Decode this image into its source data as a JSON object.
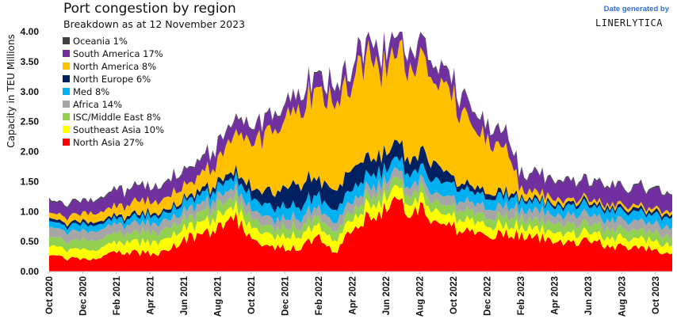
{
  "credit": {
    "line1": "Date generated by",
    "brand": "LINERLYTICA",
    "color": "#2f6fd6"
  },
  "chart_data": {
    "type": "area",
    "stacked": true,
    "title": "Port congestion by region",
    "subtitle": "Breakdown as at 12 November 2023",
    "ylabel": "Capacity in TEU Millions",
    "xlabel": "",
    "ylim": [
      0,
      4.0
    ],
    "yticks": [
      "0.00",
      "0.50",
      "1.00",
      "1.50",
      "2.00",
      "2.50",
      "3.00",
      "3.50",
      "4.00"
    ],
    "xticks": [
      "Oct 2020",
      "Dec 2020",
      "Feb 2021",
      "Apr 2021",
      "Jun 2021",
      "Aug 2021",
      "Oct 2021",
      "Dec 2021",
      "Feb 2022",
      "Apr 2022",
      "Jun 2022",
      "Aug 2022",
      "Oct 2022",
      "Dec 2022",
      "Feb 2023",
      "Apr 2023",
      "Jun 2023",
      "Aug 2023",
      "Oct 2023"
    ],
    "legend_position": "top-left",
    "legend": [
      {
        "label": "Oceania 1%",
        "color": "#404040"
      },
      {
        "label": "South America 17%",
        "color": "#7030a0"
      },
      {
        "label": "North America 8%",
        "color": "#ffc000"
      },
      {
        "label": "North Europe 6%",
        "color": "#002060"
      },
      {
        "label": "Med 8%",
        "color": "#00b0f0"
      },
      {
        "label": "Africa 14%",
        "color": "#a6a6a6"
      },
      {
        "label": "ISC/Middle East 8%",
        "color": "#92d050"
      },
      {
        "label": "Southeast Asia 10%",
        "color": "#ffff00"
      },
      {
        "label": "North Asia 27%",
        "color": "#ff0000"
      }
    ],
    "x_months": [
      0,
      1,
      2,
      3,
      4,
      5,
      6,
      7,
      8,
      9,
      10,
      11,
      12,
      13,
      14,
      15,
      16,
      17,
      18,
      19,
      20,
      21,
      22,
      23,
      24,
      25,
      26,
      27,
      28,
      29,
      30,
      31,
      32,
      33,
      34,
      35,
      36,
      37
    ],
    "series": [
      {
        "name": "North Asia",
        "color": "#ff0000",
        "values": [
          0.25,
          0.22,
          0.2,
          0.24,
          0.3,
          0.32,
          0.3,
          0.32,
          0.55,
          0.6,
          0.68,
          0.9,
          0.55,
          0.45,
          0.4,
          0.42,
          0.55,
          0.3,
          0.7,
          0.95,
          1.05,
          1.1,
          1.05,
          0.85,
          0.75,
          0.65,
          0.62,
          0.65,
          0.6,
          0.55,
          0.55,
          0.5,
          0.5,
          0.45,
          0.42,
          0.4,
          0.35,
          0.32
        ]
      },
      {
        "name": "Southeast Asia",
        "color": "#ffff00",
        "values": [
          0.15,
          0.15,
          0.15,
          0.16,
          0.16,
          0.18,
          0.2,
          0.22,
          0.18,
          0.2,
          0.2,
          0.18,
          0.2,
          0.2,
          0.2,
          0.2,
          0.18,
          0.2,
          0.18,
          0.2,
          0.2,
          0.2,
          0.18,
          0.18,
          0.18,
          0.18,
          0.18,
          0.15,
          0.15,
          0.15,
          0.15,
          0.15,
          0.15,
          0.15,
          0.15,
          0.15,
          0.15,
          0.15
        ]
      },
      {
        "name": "ISC/Middle East",
        "color": "#92d050",
        "values": [
          0.15,
          0.15,
          0.15,
          0.15,
          0.15,
          0.15,
          0.16,
          0.16,
          0.15,
          0.16,
          0.16,
          0.16,
          0.15,
          0.15,
          0.15,
          0.15,
          0.15,
          0.15,
          0.15,
          0.15,
          0.15,
          0.15,
          0.15,
          0.15,
          0.15,
          0.15,
          0.15,
          0.15,
          0.15,
          0.15,
          0.15,
          0.15,
          0.15,
          0.15,
          0.15,
          0.15,
          0.15,
          0.15
        ]
      },
      {
        "name": "Africa",
        "color": "#a6a6a6",
        "values": [
          0.15,
          0.15,
          0.15,
          0.15,
          0.15,
          0.15,
          0.15,
          0.15,
          0.15,
          0.15,
          0.15,
          0.15,
          0.15,
          0.15,
          0.15,
          0.15,
          0.15,
          0.15,
          0.15,
          0.15,
          0.15,
          0.15,
          0.15,
          0.15,
          0.15,
          0.15,
          0.15,
          0.15,
          0.15,
          0.15,
          0.15,
          0.15,
          0.15,
          0.15,
          0.15,
          0.15,
          0.15,
          0.15
        ]
      },
      {
        "name": "Med",
        "color": "#00b0f0",
        "values": [
          0.1,
          0.1,
          0.1,
          0.1,
          0.1,
          0.1,
          0.12,
          0.12,
          0.15,
          0.15,
          0.15,
          0.18,
          0.2,
          0.2,
          0.2,
          0.2,
          0.2,
          0.2,
          0.2,
          0.2,
          0.2,
          0.2,
          0.2,
          0.22,
          0.2,
          0.2,
          0.18,
          0.18,
          0.15,
          0.15,
          0.15,
          0.15,
          0.15,
          0.15,
          0.15,
          0.15,
          0.15,
          0.15
        ]
      },
      {
        "name": "North Europe",
        "color": "#002060",
        "values": [
          0.05,
          0.05,
          0.05,
          0.05,
          0.05,
          0.05,
          0.05,
          0.05,
          0.05,
          0.08,
          0.08,
          0.1,
          0.15,
          0.25,
          0.3,
          0.35,
          0.3,
          0.35,
          0.35,
          0.3,
          0.25,
          0.25,
          0.25,
          0.3,
          0.1,
          0.1,
          0.08,
          0.08,
          0.05,
          0.05,
          0.05,
          0.05,
          0.05,
          0.05,
          0.05,
          0.05,
          0.05,
          0.05
        ]
      },
      {
        "name": "North America",
        "color": "#ffc000",
        "values": [
          0.1,
          0.1,
          0.15,
          0.15,
          0.15,
          0.2,
          0.2,
          0.2,
          0.2,
          0.25,
          0.35,
          0.6,
          0.8,
          0.95,
          1.2,
          1.3,
          1.45,
          1.5,
          1.5,
          1.7,
          1.45,
          1.5,
          1.45,
          1.45,
          1.3,
          1.1,
          0.9,
          0.75,
          0.15,
          0.1,
          0.08,
          0.05,
          0.05,
          0.05,
          0.05,
          0.05,
          0.05,
          0.05
        ]
      },
      {
        "name": "South America",
        "color": "#7030a0",
        "values": [
          0.2,
          0.2,
          0.22,
          0.22,
          0.25,
          0.25,
          0.25,
          0.25,
          0.25,
          0.25,
          0.25,
          0.25,
          0.25,
          0.25,
          0.25,
          0.25,
          0.25,
          0.25,
          0.25,
          0.25,
          0.3,
          0.3,
          0.3,
          0.25,
          0.25,
          0.25,
          0.25,
          0.25,
          0.25,
          0.3,
          0.3,
          0.3,
          0.3,
          0.3,
          0.3,
          0.3,
          0.3,
          0.3
        ]
      },
      {
        "name": "Oceania",
        "color": "#404040",
        "values": [
          0.02,
          0.02,
          0.02,
          0.02,
          0.02,
          0.02,
          0.02,
          0.02,
          0.02,
          0.02,
          0.02,
          0.02,
          0.02,
          0.02,
          0.02,
          0.02,
          0.02,
          0.02,
          0.02,
          0.02,
          0.02,
          0.02,
          0.02,
          0.02,
          0.02,
          0.02,
          0.02,
          0.02,
          0.02,
          0.02,
          0.02,
          0.02,
          0.02,
          0.02,
          0.02,
          0.02,
          0.02,
          0.02
        ]
      }
    ]
  }
}
